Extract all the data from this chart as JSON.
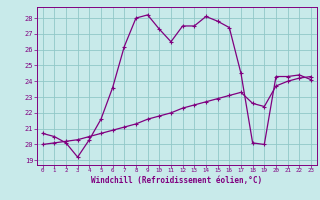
{
  "xlabel": "Windchill (Refroidissement éolien,°C)",
  "background_color": "#c8eaea",
  "line_color": "#800080",
  "grid_color": "#90c8c8",
  "xlim": [
    -0.5,
    23.5
  ],
  "ylim": [
    18.7,
    28.7
  ],
  "yticks": [
    19,
    20,
    21,
    22,
    23,
    24,
    25,
    26,
    27,
    28
  ],
  "xticks": [
    0,
    1,
    2,
    3,
    4,
    5,
    6,
    7,
    8,
    9,
    10,
    11,
    12,
    13,
    14,
    15,
    16,
    17,
    18,
    19,
    20,
    21,
    22,
    23
  ],
  "series1_x": [
    0,
    1,
    2,
    3,
    4,
    5,
    6,
    7,
    8,
    9,
    10,
    11,
    12,
    13,
    14,
    15,
    16,
    17,
    18,
    19,
    20,
    21,
    22,
    23
  ],
  "series1_y": [
    20.7,
    20.5,
    20.1,
    19.2,
    20.3,
    21.6,
    23.6,
    26.2,
    28.0,
    28.2,
    27.3,
    26.5,
    27.5,
    27.5,
    28.1,
    27.8,
    27.4,
    24.5,
    20.1,
    20.0,
    24.3,
    24.3,
    24.4,
    24.1
  ],
  "series2_x": [
    0,
    1,
    2,
    3,
    4,
    5,
    6,
    7,
    8,
    9,
    10,
    11,
    12,
    13,
    14,
    15,
    16,
    17,
    18,
    19,
    20,
    21,
    22,
    23
  ],
  "series2_y": [
    20.0,
    20.1,
    20.2,
    20.3,
    20.5,
    20.7,
    20.9,
    21.1,
    21.3,
    21.6,
    21.8,
    22.0,
    22.3,
    22.5,
    22.7,
    22.9,
    23.1,
    23.3,
    22.6,
    22.4,
    23.7,
    24.0,
    24.2,
    24.3
  ]
}
